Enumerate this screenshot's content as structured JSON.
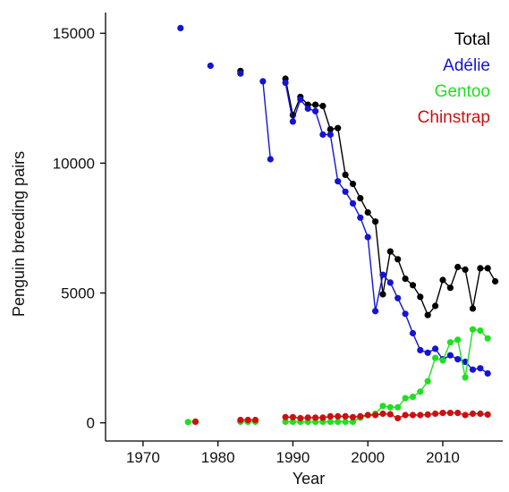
{
  "chart_data": {
    "type": "line",
    "title": "",
    "xlabel": "Year",
    "ylabel": "Penguin breeding pairs",
    "xlim": [
      1965,
      2018
    ],
    "ylim": [
      -700,
      15800
    ],
    "xticks": [
      1970,
      1980,
      1990,
      2000,
      2010
    ],
    "yticks": [
      0,
      5000,
      10000,
      15000
    ],
    "grid": false,
    "legend_position": "top-right",
    "series": [
      {
        "name": "Total",
        "color": "#000000",
        "points": [
          [
            1983,
            13550
          ],
          [
            1989,
            13250
          ],
          [
            1990,
            11850
          ],
          [
            1991,
            12550
          ],
          [
            1992,
            12250
          ],
          [
            1993,
            12250
          ],
          [
            1994,
            12200
          ],
          [
            1995,
            11300
          ],
          [
            1996,
            11350
          ],
          [
            1997,
            9550
          ],
          [
            1998,
            9200
          ],
          [
            1999,
            8650
          ],
          [
            2000,
            8100
          ],
          [
            2001,
            7750
          ],
          [
            2002,
            4950
          ],
          [
            2003,
            6600
          ],
          [
            2004,
            6300
          ],
          [
            2005,
            5550
          ],
          [
            2006,
            5300
          ],
          [
            2007,
            4850
          ],
          [
            2008,
            4150
          ],
          [
            2009,
            4500
          ],
          [
            2010,
            5500
          ],
          [
            2011,
            5200
          ],
          [
            2012,
            6000
          ],
          [
            2013,
            5900
          ],
          [
            2014,
            4400
          ],
          [
            2015,
            5950
          ],
          [
            2016,
            5950
          ],
          [
            2017,
            5450
          ]
        ],
        "segments": [
          [
            1983,
            1983
          ],
          [
            1989,
            2017
          ]
        ]
      },
      {
        "name": "Adélie",
        "color": "#1414d2",
        "points": [
          [
            1975,
            15200
          ],
          [
            1979,
            13750
          ],
          [
            1983,
            13450
          ],
          [
            1986,
            13150
          ],
          [
            1987,
            10150
          ],
          [
            1989,
            13100
          ],
          [
            1990,
            11600
          ],
          [
            1991,
            12450
          ],
          [
            1992,
            12100
          ],
          [
            1993,
            12000
          ],
          [
            1994,
            11100
          ],
          [
            1995,
            11100
          ],
          [
            1996,
            9300
          ],
          [
            1997,
            8900
          ],
          [
            1998,
            8450
          ],
          [
            1999,
            7900
          ],
          [
            2000,
            7150
          ],
          [
            2001,
            4300
          ],
          [
            2002,
            5700
          ],
          [
            2003,
            5400
          ],
          [
            2004,
            4800
          ],
          [
            2005,
            4200
          ],
          [
            2006,
            3450
          ],
          [
            2007,
            2800
          ],
          [
            2008,
            2700
          ],
          [
            2009,
            2850
          ],
          [
            2010,
            2450
          ],
          [
            2011,
            2600
          ],
          [
            2012,
            2450
          ],
          [
            2013,
            2350
          ],
          [
            2014,
            2050
          ],
          [
            2015,
            2100
          ],
          [
            2016,
            1900
          ]
        ],
        "segments": [
          [
            1975,
            1975
          ],
          [
            1979,
            1979
          ],
          [
            1983,
            1983
          ],
          [
            1986,
            1987
          ],
          [
            1989,
            2016
          ]
        ]
      },
      {
        "name": "Gentoo",
        "color": "#1ee01e",
        "points": [
          [
            1976,
            30
          ],
          [
            1977,
            50
          ],
          [
            1983,
            40
          ],
          [
            1984,
            40
          ],
          [
            1985,
            40
          ],
          [
            1989,
            40
          ],
          [
            1990,
            40
          ],
          [
            1991,
            40
          ],
          [
            1992,
            40
          ],
          [
            1993,
            40
          ],
          [
            1994,
            40
          ],
          [
            1995,
            40
          ],
          [
            1996,
            40
          ],
          [
            1997,
            40
          ],
          [
            1998,
            40
          ],
          [
            1999,
            200
          ],
          [
            2000,
            300
          ],
          [
            2001,
            350
          ],
          [
            2002,
            650
          ],
          [
            2003,
            600
          ],
          [
            2004,
            600
          ],
          [
            2005,
            950
          ],
          [
            2006,
            1000
          ],
          [
            2007,
            1200
          ],
          [
            2008,
            1600
          ],
          [
            2009,
            2500
          ],
          [
            2010,
            2400
          ],
          [
            2011,
            3100
          ],
          [
            2012,
            3200
          ],
          [
            2013,
            1750
          ],
          [
            2014,
            3600
          ],
          [
            2015,
            3550
          ],
          [
            2016,
            3250
          ]
        ],
        "segments": [
          [
            1976,
            1977
          ],
          [
            1983,
            1985
          ],
          [
            1989,
            2016
          ]
        ]
      },
      {
        "name": "Chinstrap",
        "color": "#cc1010",
        "points": [
          [
            1977,
            40
          ],
          [
            1983,
            110
          ],
          [
            1984,
            110
          ],
          [
            1985,
            110
          ],
          [
            1989,
            220
          ],
          [
            1990,
            220
          ],
          [
            1991,
            180
          ],
          [
            1992,
            200
          ],
          [
            1993,
            200
          ],
          [
            1994,
            200
          ],
          [
            1995,
            250
          ],
          [
            1996,
            250
          ],
          [
            1997,
            250
          ],
          [
            1998,
            220
          ],
          [
            1999,
            250
          ],
          [
            2000,
            300
          ],
          [
            2001,
            300
          ],
          [
            2002,
            350
          ],
          [
            2003,
            330
          ],
          [
            2004,
            180
          ],
          [
            2005,
            300
          ],
          [
            2006,
            300
          ],
          [
            2007,
            300
          ],
          [
            2008,
            320
          ],
          [
            2009,
            350
          ],
          [
            2010,
            380
          ],
          [
            2011,
            380
          ],
          [
            2012,
            380
          ],
          [
            2013,
            300
          ],
          [
            2014,
            350
          ],
          [
            2015,
            350
          ],
          [
            2016,
            320
          ]
        ],
        "segments": [
          [
            1977,
            1977
          ],
          [
            1983,
            1985
          ],
          [
            1989,
            2016
          ]
        ]
      }
    ]
  }
}
